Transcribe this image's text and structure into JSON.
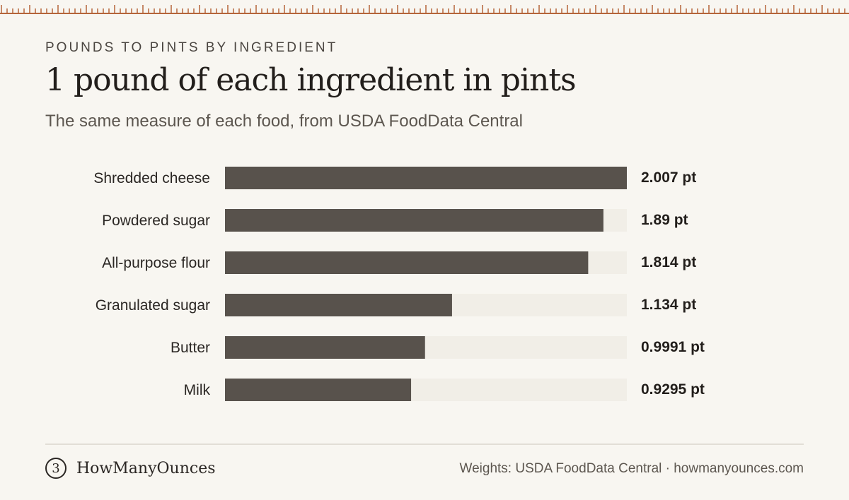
{
  "header": {
    "eyebrow": "POUNDS TO PINTS BY INGREDIENT",
    "title": "1 pound of each ingredient in pints",
    "subtitle": "The same measure of each food, from USDA FoodData Central"
  },
  "colors": {
    "background": "#f8f6f1",
    "bar": "#58524c",
    "track": "#f1eee7",
    "ruler": "#b5653a"
  },
  "chart_data": {
    "type": "bar",
    "orientation": "horizontal",
    "categories": [
      "Shredded cheese",
      "Powdered sugar",
      "All-purpose flour",
      "Granulated sugar",
      "Butter",
      "Milk"
    ],
    "values": [
      2.007,
      1.89,
      1.814,
      1.134,
      0.9991,
      0.9295
    ],
    "value_labels": [
      "2.007 pt",
      "1.89 pt",
      "1.814 pt",
      "1.134 pt",
      "0.9991 pt",
      "0.9295 pt"
    ],
    "unit": "pt",
    "xlim": [
      0,
      2.007
    ],
    "grid": false
  },
  "footer": {
    "logo_glyph": "3",
    "brand": "HowManyOunces",
    "source": "Weights: USDA FoodData Central · howmanyounces.com"
  }
}
